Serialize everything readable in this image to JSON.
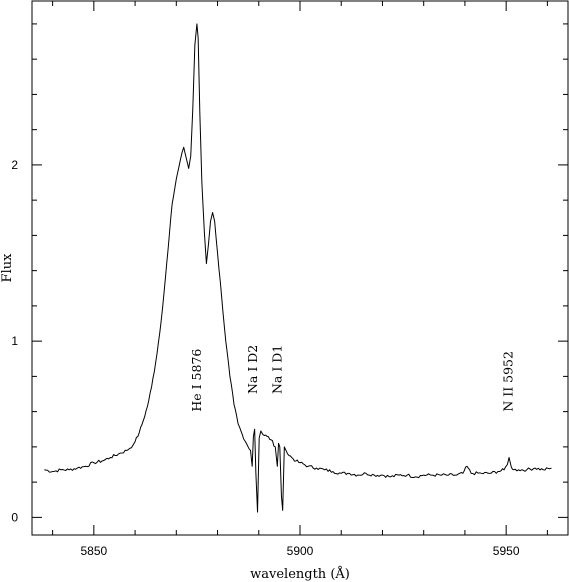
{
  "chart_data": {
    "type": "line",
    "title": "",
    "xlabel": "wavelength (Å)",
    "ylabel": "Flux",
    "xlim": [
      5835,
      5965
    ],
    "ylim": [
      -0.1,
      2.93
    ],
    "xticks": [
      5850,
      5900,
      5950
    ],
    "yticks": [
      0,
      1,
      2
    ],
    "grid": false,
    "legend": "none",
    "series_color": "#000000",
    "series": [
      {
        "x": [
          5838,
          5840,
          5842,
          5844,
          5846,
          5848,
          5850,
          5852,
          5854,
          5856,
          5858,
          5859.5,
          5860,
          5861,
          5862,
          5863,
          5864,
          5865,
          5866,
          5867,
          5868,
          5869,
          5870,
          5871,
          5871.8,
          5872.5,
          5873,
          5873.5,
          5874,
          5874.5,
          5875,
          5875.3,
          5875.7,
          5876.2,
          5876.8,
          5877.3,
          5877.8,
          5878.3,
          5878.8,
          5879.3,
          5880,
          5881,
          5882,
          5883,
          5884,
          5885,
          5886,
          5887,
          5888,
          5888.4,
          5888.7,
          5889,
          5889.3,
          5889.7,
          5890.1,
          5890.5,
          5891,
          5892,
          5893,
          5894,
          5894.5,
          5894.8,
          5895.1,
          5895.5,
          5895.8,
          5896.2,
          5896.6,
          5897,
          5898,
          5899,
          5900,
          5902,
          5904,
          5906,
          5908,
          5910,
          5912,
          5914,
          5916,
          5918,
          5920,
          5922,
          5924,
          5926,
          5928,
          5930,
          5932,
          5934,
          5936,
          5938,
          5939.5,
          5940.5,
          5941.5,
          5944,
          5946,
          5948,
          5949.5,
          5950.3,
          5950.7,
          5951.2,
          5951.8,
          5953,
          5955,
          5957,
          5959,
          5961
        ],
        "y": [
          0.27,
          0.26,
          0.27,
          0.27,
          0.28,
          0.29,
          0.31,
          0.32,
          0.34,
          0.36,
          0.38,
          0.41,
          0.43,
          0.48,
          0.55,
          0.63,
          0.74,
          0.88,
          1.05,
          1.27,
          1.52,
          1.78,
          1.92,
          2.03,
          2.1,
          2.03,
          1.98,
          2.05,
          2.32,
          2.68,
          2.8,
          2.72,
          2.3,
          1.9,
          1.62,
          1.44,
          1.55,
          1.68,
          1.73,
          1.68,
          1.5,
          1.25,
          1.0,
          0.8,
          0.64,
          0.53,
          0.47,
          0.42,
          0.38,
          0.29,
          0.46,
          0.5,
          0.25,
          0.03,
          0.45,
          0.49,
          0.47,
          0.46,
          0.44,
          0.4,
          0.29,
          0.42,
          0.4,
          0.12,
          0.04,
          0.4,
          0.38,
          0.36,
          0.34,
          0.32,
          0.31,
          0.29,
          0.28,
          0.27,
          0.26,
          0.25,
          0.25,
          0.24,
          0.25,
          0.24,
          0.24,
          0.23,
          0.24,
          0.24,
          0.23,
          0.24,
          0.24,
          0.24,
          0.24,
          0.24,
          0.25,
          0.29,
          0.25,
          0.25,
          0.25,
          0.26,
          0.27,
          0.3,
          0.34,
          0.29,
          0.27,
          0.27,
          0.27,
          0.28,
          0.27,
          0.28
        ]
      }
    ],
    "annotations": [
      {
        "text": "He I 5876",
        "x": 5876,
        "y": 0.6
      },
      {
        "text": "Na I D2",
        "x": 5889.6,
        "y": 0.7
      },
      {
        "text": "Na I D1",
        "x": 5895.5,
        "y": 0.7
      },
      {
        "text": "N II 5952",
        "x": 5951.5,
        "y": 0.6
      }
    ]
  }
}
